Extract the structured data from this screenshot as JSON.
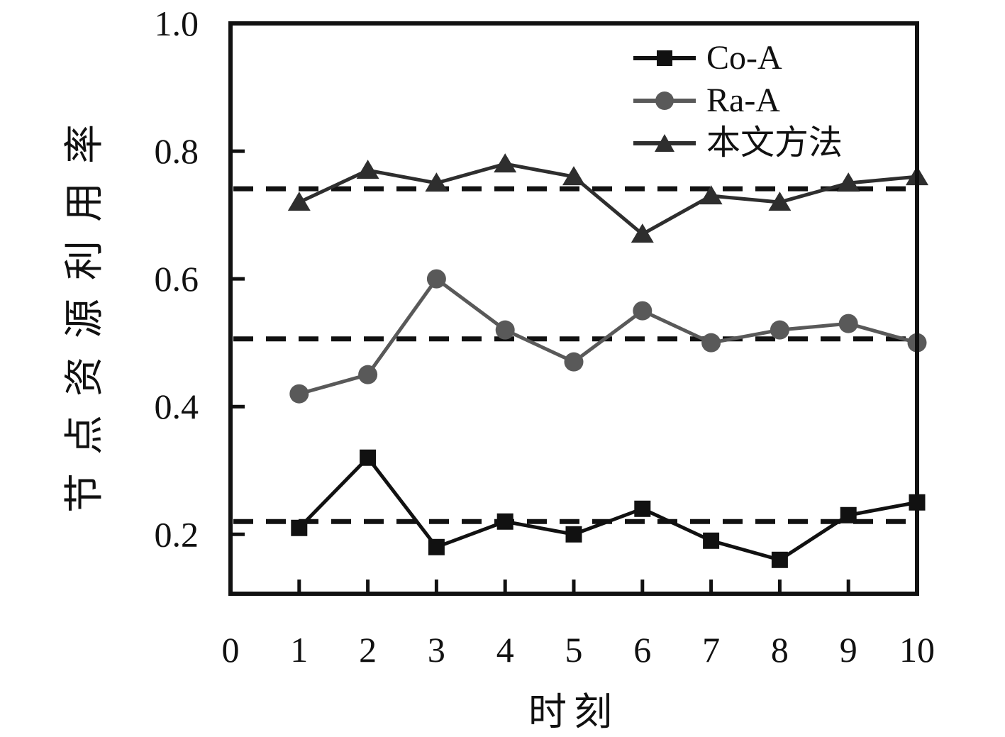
{
  "figure": {
    "background": "#ffffff",
    "axis_color": "#111111"
  },
  "chart_data": {
    "type": "line",
    "title": "",
    "xlabel": "时刻",
    "ylabel": "节点资源利用率",
    "xlim": [
      0,
      10
    ],
    "ylim": [
      0.107,
      1.0
    ],
    "x_ticks": [
      0,
      1,
      2,
      3,
      4,
      5,
      6,
      7,
      8,
      9,
      10
    ],
    "y_ticks": [
      0.2,
      0.4,
      0.6,
      0.8,
      1.0
    ],
    "y_tick_labels": [
      "0.2",
      "0.4",
      "0.6",
      "0.8",
      "1.0"
    ],
    "grid": false,
    "legend_position": "top-right-inside",
    "x": [
      1,
      2,
      3,
      4,
      5,
      6,
      7,
      8,
      9,
      10
    ],
    "series": [
      {
        "id": "co-a",
        "name": "Co-A",
        "marker": "square",
        "color": "#111111",
        "values": [
          0.21,
          0.32,
          0.18,
          0.22,
          0.2,
          0.24,
          0.19,
          0.16,
          0.23,
          0.25
        ]
      },
      {
        "id": "ra-a",
        "name": "Ra-A",
        "marker": "circle",
        "color": "#595959",
        "values": [
          0.42,
          0.45,
          0.6,
          0.52,
          0.47,
          0.55,
          0.5,
          0.52,
          0.53,
          0.5
        ]
      },
      {
        "id": "proposed-method",
        "name": "本文方法",
        "marker": "triangle",
        "color": "#2e2e2e",
        "values": [
          0.72,
          0.77,
          0.75,
          0.78,
          0.76,
          0.67,
          0.73,
          0.72,
          0.75,
          0.76
        ]
      }
    ],
    "reference_lines": [
      {
        "series": "Co-A",
        "value": 0.22,
        "style": "dashed",
        "color": "#111111"
      },
      {
        "series": "Ra-A",
        "value": 0.506,
        "style": "dashed",
        "color": "#111111"
      },
      {
        "series": "本文方法",
        "value": 0.741,
        "style": "dashed",
        "color": "#111111"
      }
    ]
  }
}
